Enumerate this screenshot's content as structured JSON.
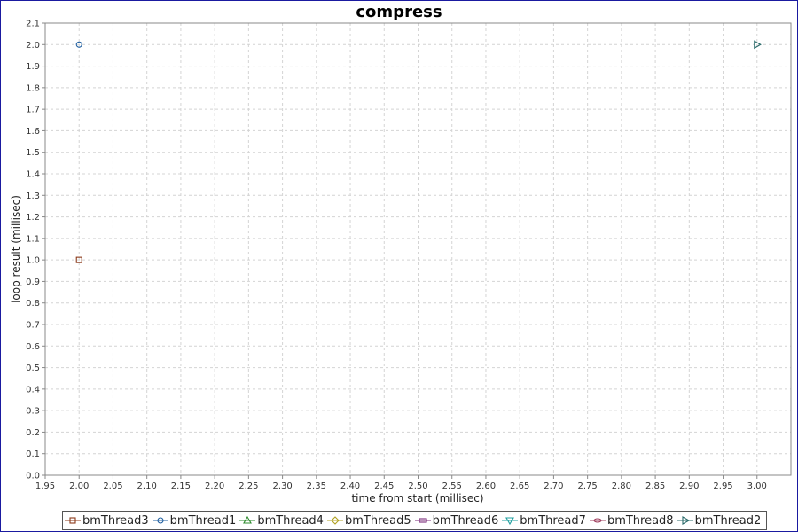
{
  "chart_data": {
    "type": "scatter",
    "title": "compress",
    "xlabel": "time from start (millisec)",
    "ylabel": "loop result (millisec)",
    "xlim": [
      1.95,
      3.05
    ],
    "ylim": [
      0.0,
      2.1
    ],
    "xticks": [
      "1.95",
      "2.00",
      "2.05",
      "2.10",
      "2.15",
      "2.20",
      "2.25",
      "2.30",
      "2.35",
      "2.40",
      "2.45",
      "2.50",
      "2.55",
      "2.60",
      "2.65",
      "2.70",
      "2.75",
      "2.80",
      "2.85",
      "2.90",
      "2.95",
      "3.00"
    ],
    "yticks": [
      "0.0",
      "0.1",
      "0.2",
      "0.3",
      "0.4",
      "0.5",
      "0.6",
      "0.7",
      "0.8",
      "0.9",
      "1.0",
      "1.1",
      "1.2",
      "1.3",
      "1.4",
      "1.5",
      "1.6",
      "1.7",
      "1.8",
      "1.9",
      "2.0",
      "2.1"
    ],
    "grid": true,
    "legend_position": "bottom",
    "series": [
      {
        "name": "bmThread3",
        "marker": "square",
        "color": "#8b3a1a",
        "points": [
          {
            "x": 2.0,
            "y": 1.0
          }
        ]
      },
      {
        "name": "bmThread1",
        "marker": "circle",
        "color": "#1f5fa0",
        "points": [
          {
            "x": 2.0,
            "y": 2.0
          }
        ]
      },
      {
        "name": "bmThread4",
        "marker": "triangle-up",
        "color": "#2e8b2e",
        "points": []
      },
      {
        "name": "bmThread5",
        "marker": "diamond",
        "color": "#b0a020",
        "points": []
      },
      {
        "name": "bmThread6",
        "marker": "rect",
        "color": "#7a2a7a",
        "points": []
      },
      {
        "name": "bmThread7",
        "marker": "triangle-down",
        "color": "#20a0a0",
        "points": []
      },
      {
        "name": "bmThread8",
        "marker": "ellipse",
        "color": "#a04060",
        "points": []
      },
      {
        "name": "bmThread2",
        "marker": "triangle-right",
        "color": "#2a6a6a",
        "points": [
          {
            "x": 3.0,
            "y": 2.0
          }
        ]
      }
    ]
  }
}
